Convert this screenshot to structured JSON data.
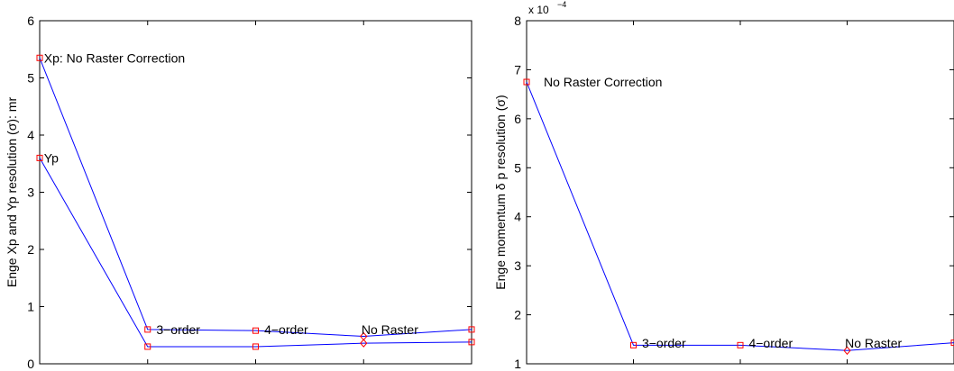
{
  "chart_data": [
    {
      "type": "line",
      "title": "",
      "xlabel": "",
      "ylabel": "Enge Xp and Yp resolution (σ): mr",
      "xlim": [
        0,
        4
      ],
      "ylim": [
        0,
        6
      ],
      "y_ticks": [
        "0",
        "1",
        "2",
        "3",
        "4",
        "5",
        "6"
      ],
      "x_ticks": [
        0,
        1,
        2,
        3,
        4
      ],
      "series": [
        {
          "x": [
            0,
            1,
            2,
            3,
            4
          ],
          "values": [
            5.35,
            0.6,
            0.58,
            0.48,
            0.6
          ],
          "markers": [
            "square",
            "square",
            "square",
            "diamond",
            "square"
          ]
        },
        {
          "x": [
            0,
            1,
            2,
            3,
            4
          ],
          "values": [
            3.6,
            0.3,
            0.3,
            0.36,
            0.38
          ],
          "markers": [
            "square",
            "square",
            "square",
            "diamond",
            "square"
          ]
        }
      ],
      "annotations": [
        {
          "text": "Xp: No Raster Correction",
          "x": 0.04,
          "y": 5.35
        },
        {
          "text": "Yp",
          "x": 0.04,
          "y": 3.6
        },
        {
          "text": "3−order",
          "x": 1.08,
          "y": 0.6
        },
        {
          "text": "4−order",
          "x": 2.08,
          "y": 0.6
        },
        {
          "text": "No Raster",
          "x": 2.98,
          "y": 0.6
        }
      ],
      "colors": {
        "line": "#0000ff",
        "marker": "#ff0000"
      }
    },
    {
      "type": "line",
      "title": "",
      "xlabel": "",
      "ylabel": "Enge momentum δ p resolution (σ)",
      "y_exponent_label": "x 10",
      "y_exponent_power": "−4",
      "xlim": [
        0,
        4
      ],
      "ylim": [
        1,
        8
      ],
      "y_ticks": [
        "1",
        "2",
        "3",
        "4",
        "5",
        "6",
        "7",
        "8"
      ],
      "x_ticks": [
        0,
        1,
        2,
        3,
        4
      ],
      "series": [
        {
          "x": [
            0,
            1,
            2,
            3,
            4
          ],
          "values": [
            6.75,
            1.38,
            1.38,
            1.27,
            1.43
          ],
          "markers": [
            "square",
            "square",
            "square",
            "diamond",
            "square"
          ]
        }
      ],
      "annotations": [
        {
          "text": "No Raster Correction",
          "x": 0.16,
          "y": 6.75
        },
        {
          "text": "3−order",
          "x": 1.08,
          "y": 1.42
        },
        {
          "text": "4−order",
          "x": 2.08,
          "y": 1.42
        },
        {
          "text": "No Raster",
          "x": 2.98,
          "y": 1.42
        }
      ],
      "colors": {
        "line": "#0000ff",
        "marker": "#ff0000"
      }
    }
  ]
}
